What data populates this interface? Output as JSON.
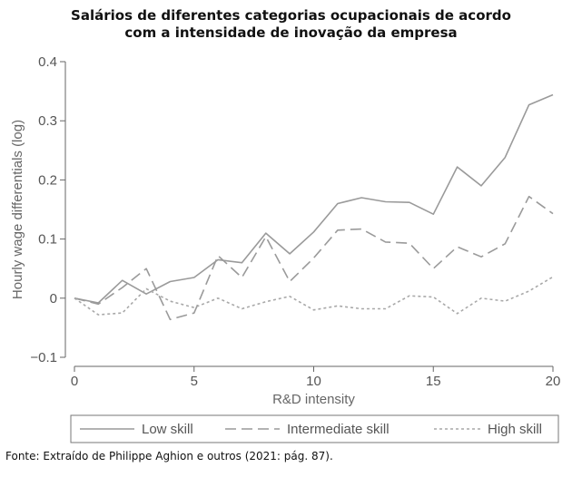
{
  "title_lines": [
    "Salários de diferentes categorias ocupacionais de acordo",
    "com a intensidade de inovação da empresa"
  ],
  "source": "Fonte: Extraído de Philippe Aghion e outros (2021: pág. 87).",
  "chart_data": {
    "type": "line",
    "xlabel": "R&D intensity",
    "ylabel": "Hourly wage differentials (log)",
    "xlim": [
      0,
      20
    ],
    "ylim": [
      -0.1,
      0.4
    ],
    "xticks": [
      0,
      5,
      10,
      15,
      20
    ],
    "yticks": [
      -0.1,
      0,
      0.1,
      0.2,
      0.3,
      0.4
    ],
    "grid": false,
    "legend_position": "bottom",
    "x": [
      0,
      1,
      2,
      3,
      4,
      5,
      6,
      7,
      8,
      9,
      10,
      11,
      12,
      13,
      14,
      15,
      16,
      17,
      18,
      19,
      20
    ],
    "series": [
      {
        "name": "Low skill",
        "style": "solid",
        "color": "#9a9a9a",
        "values": [
          0.0,
          -0.008,
          0.03,
          0.007,
          0.028,
          0.035,
          0.065,
          0.06,
          0.11,
          0.075,
          0.112,
          0.16,
          0.17,
          0.163,
          0.162,
          0.142,
          0.222,
          0.19,
          0.238,
          0.327,
          0.344
        ]
      },
      {
        "name": "Intermediate skill",
        "style": "dashed",
        "color": "#9a9a9a",
        "values": [
          0.0,
          -0.01,
          0.018,
          0.05,
          -0.036,
          -0.025,
          0.072,
          0.035,
          0.104,
          0.028,
          0.068,
          0.115,
          0.117,
          0.095,
          0.093,
          0.05,
          0.087,
          0.07,
          0.092,
          0.172,
          0.143
        ]
      },
      {
        "name": "High skill",
        "style": "dotted",
        "color": "#a8a8a8",
        "values": [
          0.0,
          -0.028,
          -0.025,
          0.016,
          -0.005,
          -0.016,
          0.0,
          -0.018,
          -0.006,
          0.003,
          -0.02,
          -0.013,
          -0.018,
          -0.018,
          0.004,
          0.002,
          -0.026,
          0.0,
          -0.005,
          0.012,
          0.036
        ]
      }
    ]
  }
}
